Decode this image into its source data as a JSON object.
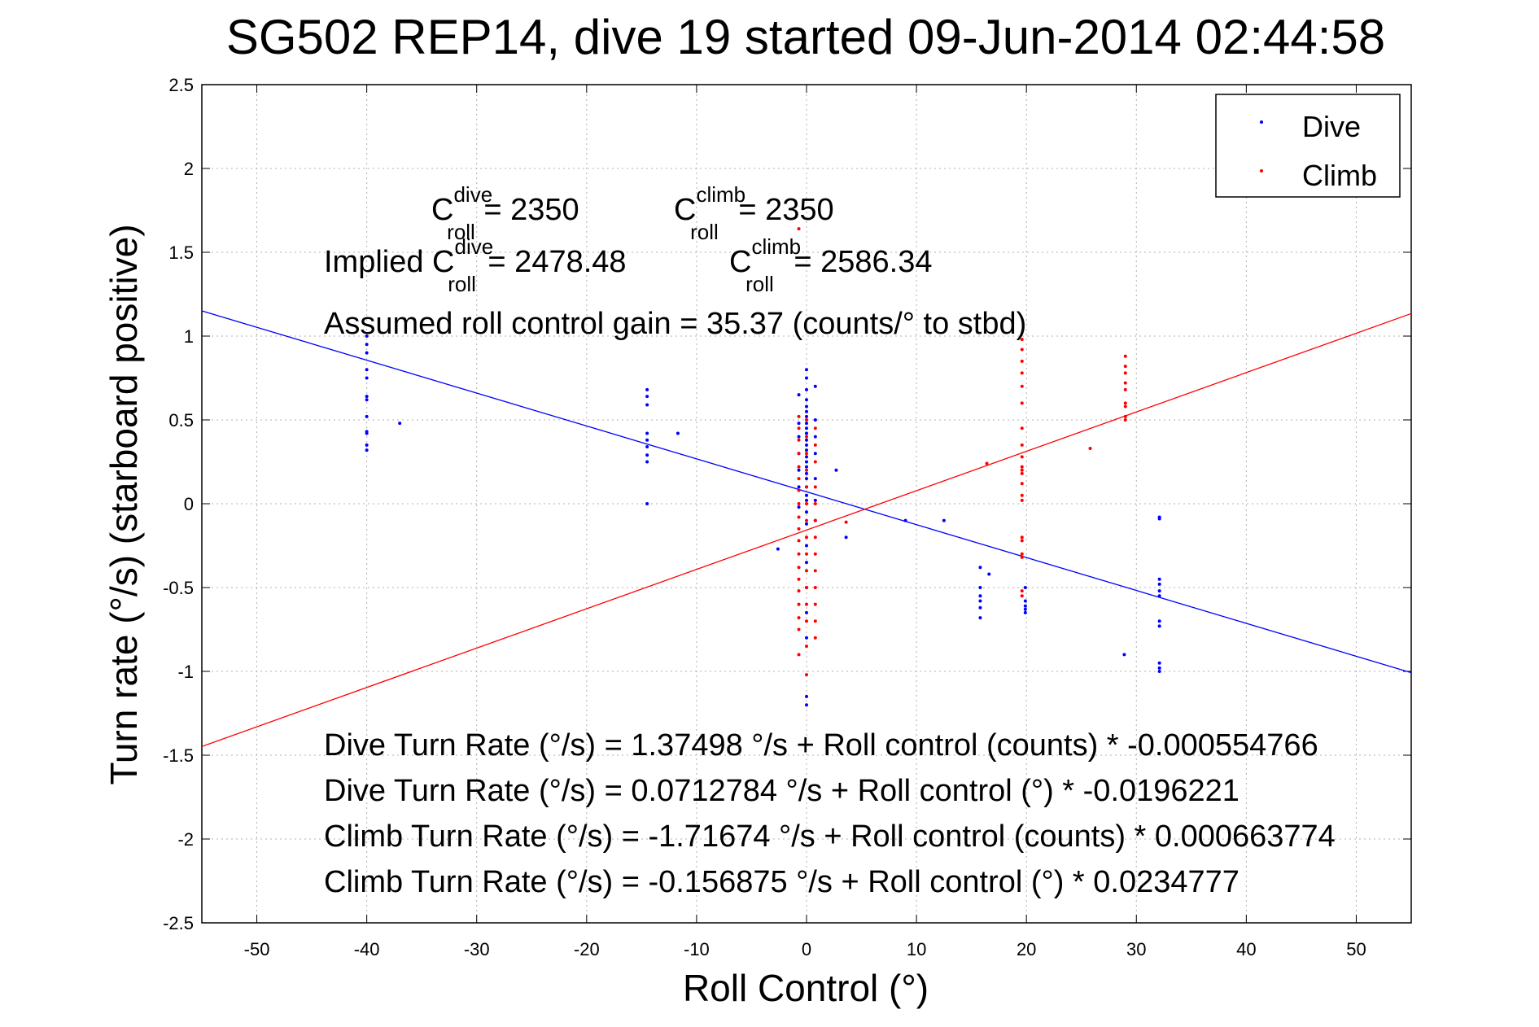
{
  "chart_data": {
    "type": "scatter",
    "title": "SG502 REP14, dive 19 started 09-Jun-2014 02:44:58",
    "xlabel": "Roll Control (°)",
    "ylabel": "Turn rate (°/s) (starboard positive)",
    "xlim": [
      -55,
      55
    ],
    "ylim": [
      -2.5,
      2.5
    ],
    "xticks": [
      -50,
      -40,
      -30,
      -20,
      -10,
      0,
      10,
      20,
      30,
      40,
      50
    ],
    "yticks": [
      2.5,
      2,
      1.5,
      1,
      0.5,
      0,
      -0.5,
      -1,
      -1.5,
      -2,
      -2.5
    ],
    "grid": true,
    "legend": {
      "placement": "top-right",
      "entries": [
        "Dive",
        "Climb"
      ]
    },
    "colors": {
      "dive": "#0000ff",
      "climb": "#ff0000"
    },
    "series": [
      {
        "name": "Dive",
        "color": "#0000ff",
        "points": [
          [
            -40,
            1.0
          ],
          [
            -40,
            0.95
          ],
          [
            -40,
            0.9
          ],
          [
            -40,
            0.8
          ],
          [
            -40,
            0.75
          ],
          [
            -40,
            0.64
          ],
          [
            -40,
            0.62
          ],
          [
            -40,
            0.52
          ],
          [
            -40,
            0.43
          ],
          [
            -40,
            0.42
          ],
          [
            -40,
            0.35
          ],
          [
            -40,
            0.32
          ],
          [
            -37,
            0.48
          ],
          [
            -14.5,
            0.68
          ],
          [
            -14.5,
            0.64
          ],
          [
            -14.5,
            0.59
          ],
          [
            -14.5,
            0.42
          ],
          [
            -14.5,
            0.38
          ],
          [
            -14.5,
            0.34
          ],
          [
            -14.5,
            0.29
          ],
          [
            -14.5,
            0.25
          ],
          [
            -14.5,
            0.0
          ],
          [
            -11.7,
            0.42
          ],
          [
            0,
            0.8
          ],
          [
            0,
            0.75
          ],
          [
            0,
            0.68
          ],
          [
            0,
            0.62
          ],
          [
            0,
            0.58
          ],
          [
            0,
            0.55
          ],
          [
            0,
            0.52
          ],
          [
            0,
            0.48
          ],
          [
            0,
            0.45
          ],
          [
            0,
            0.42
          ],
          [
            0,
            0.38
          ],
          [
            0,
            0.35
          ],
          [
            0,
            0.32
          ],
          [
            0,
            0.28
          ],
          [
            0,
            0.25
          ],
          [
            0,
            0.22
          ],
          [
            0,
            0.18
          ],
          [
            0,
            0.15
          ],
          [
            0,
            0.1
          ],
          [
            0,
            0.05
          ],
          [
            0,
            0.02
          ],
          [
            0,
            -0.05
          ],
          [
            0,
            -0.12
          ],
          [
            0,
            -0.25
          ],
          [
            0,
            -0.35
          ],
          [
            0,
            -0.5
          ],
          [
            0,
            -0.65
          ],
          [
            0,
            -0.8
          ],
          [
            0,
            -1.15
          ],
          [
            0,
            -1.2
          ],
          [
            -0.7,
            0.65
          ],
          [
            -0.7,
            0.48
          ],
          [
            -0.7,
            0.4
          ],
          [
            -0.7,
            0.3
          ],
          [
            -0.7,
            0.2
          ],
          [
            -0.7,
            0.1
          ],
          [
            -0.7,
            -0.02
          ],
          [
            0.8,
            0.7
          ],
          [
            0.8,
            0.5
          ],
          [
            0.8,
            0.4
          ],
          [
            0.8,
            0.3
          ],
          [
            0.8,
            0.15
          ],
          [
            0.8,
            0.02
          ],
          [
            0.8,
            -0.1
          ],
          [
            2.7,
            0.2
          ],
          [
            3.6,
            -0.2
          ],
          [
            -2.6,
            -0.27
          ],
          [
            9,
            -0.1
          ],
          [
            12.5,
            -0.1
          ],
          [
            15.8,
            -0.38
          ],
          [
            15.8,
            -0.5
          ],
          [
            15.8,
            -0.55
          ],
          [
            15.8,
            -0.58
          ],
          [
            15.8,
            -0.62
          ],
          [
            15.8,
            -0.68
          ],
          [
            16.6,
            -0.42
          ],
          [
            19.9,
            -0.5
          ],
          [
            19.9,
            -0.58
          ],
          [
            19.9,
            -0.61
          ],
          [
            19.9,
            -0.63
          ],
          [
            19.9,
            -0.65
          ],
          [
            28.9,
            -0.9
          ],
          [
            32.1,
            -0.08
          ],
          [
            32.1,
            -0.09
          ],
          [
            32.1,
            -0.45
          ],
          [
            32.1,
            -0.48
          ],
          [
            32.1,
            -0.52
          ],
          [
            32.1,
            -0.55
          ],
          [
            32.1,
            -0.7
          ],
          [
            32.1,
            -0.73
          ],
          [
            32.1,
            -0.95
          ],
          [
            32.1,
            -0.98
          ],
          [
            32.1,
            -1.0
          ]
        ]
      },
      {
        "name": "Climb",
        "color": "#ff0000",
        "points": [
          [
            -0.7,
            1.64
          ],
          [
            -0.7,
            0.52
          ],
          [
            -0.7,
            0.45
          ],
          [
            -0.7,
            0.38
          ],
          [
            -0.7,
            0.3
          ],
          [
            -0.7,
            0.22
          ],
          [
            -0.7,
            0.15
          ],
          [
            -0.7,
            0.08
          ],
          [
            -0.7,
            0.0
          ],
          [
            -0.7,
            -0.08
          ],
          [
            -0.7,
            -0.15
          ],
          [
            -0.7,
            -0.22
          ],
          [
            -0.7,
            -0.3
          ],
          [
            -0.7,
            -0.38
          ],
          [
            -0.7,
            -0.45
          ],
          [
            -0.7,
            -0.52
          ],
          [
            -0.7,
            -0.6
          ],
          [
            -0.7,
            -0.68
          ],
          [
            -0.7,
            -0.75
          ],
          [
            -0.7,
            -0.9
          ],
          [
            0,
            0.5
          ],
          [
            0,
            0.4
          ],
          [
            0,
            0.3
          ],
          [
            0,
            0.2
          ],
          [
            0,
            0.1
          ],
          [
            0,
            0.0
          ],
          [
            0,
            -0.1
          ],
          [
            0,
            -0.2
          ],
          [
            0,
            -0.3
          ],
          [
            0,
            -0.4
          ],
          [
            0,
            -0.5
          ],
          [
            0,
            -0.6
          ],
          [
            0,
            -0.7
          ],
          [
            0,
            -0.85
          ],
          [
            0,
            -1.02
          ],
          [
            0.8,
            0.45
          ],
          [
            0.8,
            0.35
          ],
          [
            0.8,
            0.25
          ],
          [
            0.8,
            0.1
          ],
          [
            0.8,
            0.0
          ],
          [
            0.8,
            -0.1
          ],
          [
            0.8,
            -0.2
          ],
          [
            0.8,
            -0.3
          ],
          [
            0.8,
            -0.4
          ],
          [
            0.8,
            -0.5
          ],
          [
            0.8,
            -0.6
          ],
          [
            0.8,
            -0.7
          ],
          [
            0.8,
            -0.8
          ],
          [
            3.6,
            -0.11
          ],
          [
            16.4,
            0.24
          ],
          [
            19.6,
            0.98
          ],
          [
            19.6,
            0.92
          ],
          [
            19.6,
            0.85
          ],
          [
            19.6,
            0.78
          ],
          [
            19.6,
            0.7
          ],
          [
            19.6,
            0.6
          ],
          [
            19.6,
            0.45
          ],
          [
            19.6,
            0.35
          ],
          [
            19.6,
            0.28
          ],
          [
            19.6,
            0.22
          ],
          [
            19.6,
            0.2
          ],
          [
            19.6,
            0.18
          ],
          [
            19.6,
            0.12
          ],
          [
            19.6,
            0.05
          ],
          [
            19.6,
            0.02
          ],
          [
            19.6,
            -0.2
          ],
          [
            19.6,
            -0.22
          ],
          [
            19.6,
            -0.3
          ],
          [
            19.6,
            -0.32
          ],
          [
            19.6,
            -0.52
          ],
          [
            19.6,
            -0.55
          ],
          [
            25.8,
            0.33
          ],
          [
            29.0,
            0.88
          ],
          [
            29.0,
            0.82
          ],
          [
            29.0,
            0.78
          ],
          [
            29.0,
            0.72
          ],
          [
            29.0,
            0.68
          ],
          [
            29.0,
            0.6
          ],
          [
            29.0,
            0.58
          ],
          [
            29.0,
            0.52
          ],
          [
            29.0,
            0.5
          ]
        ]
      }
    ],
    "fits": [
      {
        "name": "Dive",
        "color": "#0000ff",
        "intercept": 0.0712784,
        "slope": -0.0196221
      },
      {
        "name": "Climb",
        "color": "#ff0000",
        "intercept": -0.156875,
        "slope": 0.0234777
      }
    ],
    "annotations": {
      "c_dive_prefix": "C",
      "c_dive_sup": "dive",
      "c_dive_sub": "roll",
      "c_dive_value": " = 2350",
      "c_climb_prefix": "C",
      "c_climb_sup": "climb",
      "c_climb_sub": "roll",
      "c_climb_value": " = 2350",
      "implied_prefix": "Implied C",
      "implied_dive_sup": "dive",
      "implied_dive_sub": "roll",
      "implied_dive_value": " = 2478.48",
      "implied_climb_prefix": "C",
      "implied_climb_sup": "climb",
      "implied_climb_sub": "roll",
      "implied_climb_value": " = 2586.34",
      "gain": "Assumed roll control gain = 35.37 (counts/° to stbd)",
      "eq1": "Dive Turn Rate (°/s) = 1.37498 °/s + Roll control (counts) * -0.000554766",
      "eq2": "Dive Turn Rate (°/s) = 0.0712784 °/s + Roll control (°) * -0.0196221",
      "eq3": "Climb Turn Rate (°/s) = -1.71674 °/s + Roll control (counts) * 0.000663774",
      "eq4": "Climb Turn Rate (°/s) = -0.156875 °/s + Roll control (°) * 0.0234777"
    }
  }
}
